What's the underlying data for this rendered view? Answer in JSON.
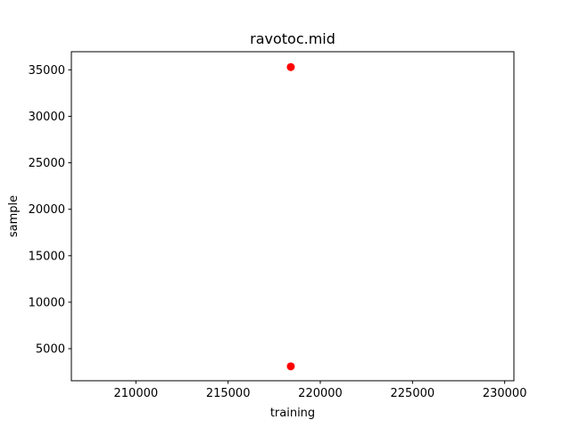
{
  "chart_data": {
    "type": "scatter",
    "title": "ravotoc.mid",
    "xlabel": "training",
    "ylabel": "sample",
    "xlim": [
      206500,
      230500
    ],
    "ylim": [
      1550,
      36950
    ],
    "xticks": [
      210000,
      215000,
      220000,
      225000,
      230000
    ],
    "yticks": [
      5000,
      10000,
      15000,
      20000,
      25000,
      30000,
      35000
    ],
    "grid": false,
    "points": [
      {
        "x": 218400,
        "y": 35300
      },
      {
        "x": 218400,
        "y": 3100
      }
    ],
    "marker_color": "#ff0000"
  }
}
